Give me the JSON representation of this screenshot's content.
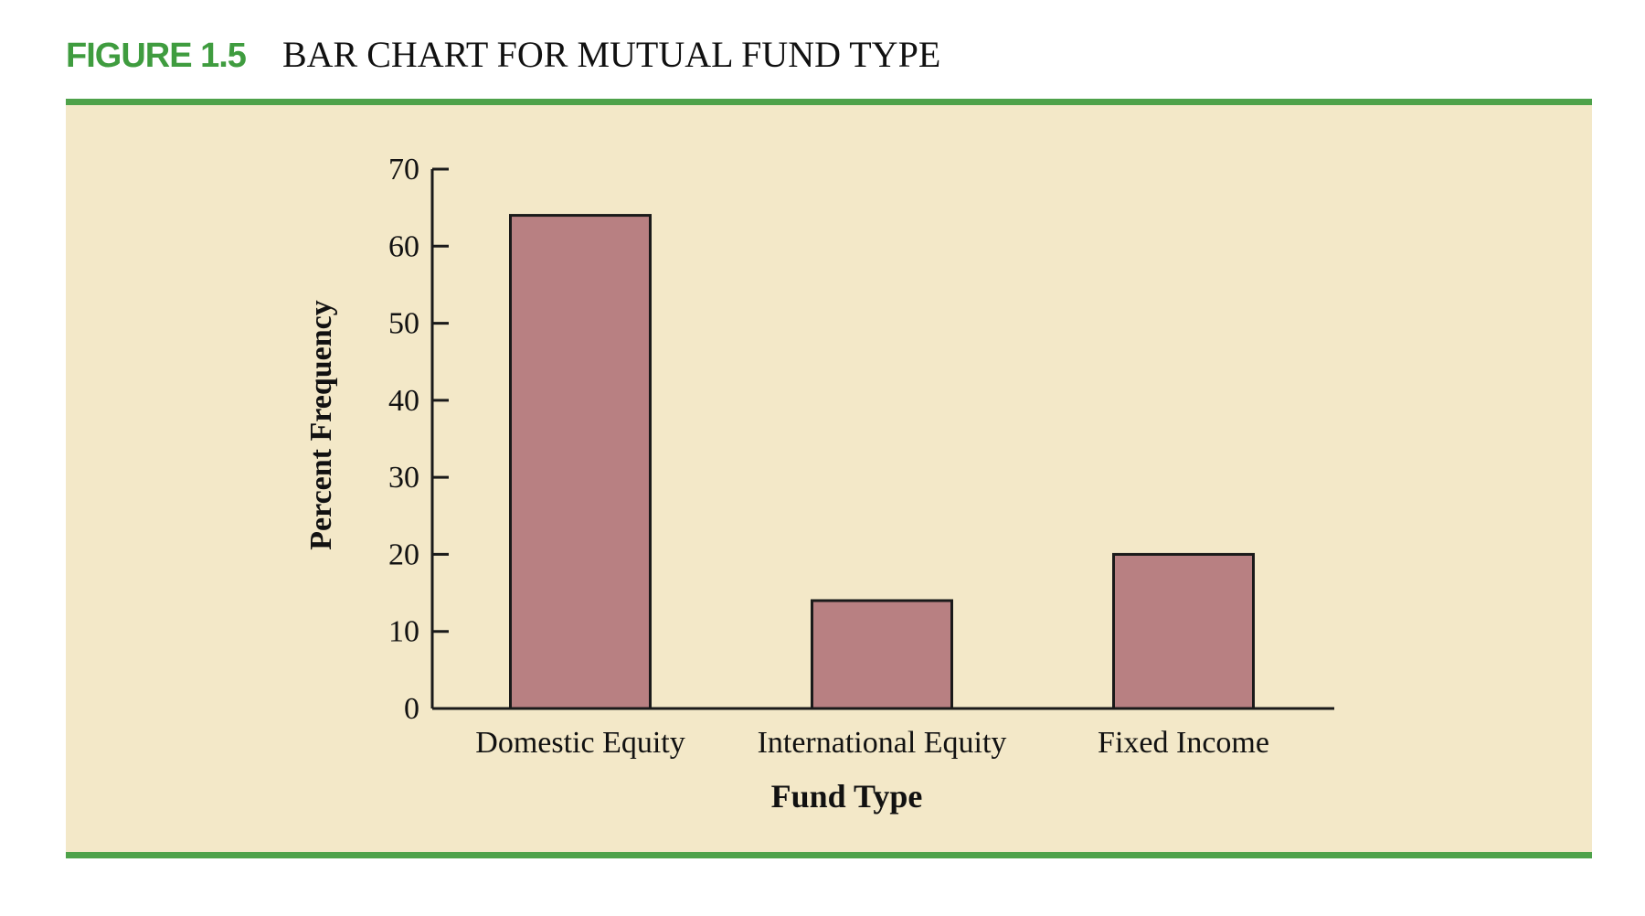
{
  "figure": {
    "label": "FIGURE 1.5",
    "title": "BAR CHART FOR MUTUAL FUND TYPE"
  },
  "colors": {
    "accent": "#4ea24a",
    "panel_background": "#f3e8c8",
    "bar_fill": "#b88082",
    "bar_stroke": "#1a1a1a"
  },
  "chart_data": {
    "type": "bar",
    "categories": [
      "Domestic Equity",
      "International Equity",
      "Fixed Income"
    ],
    "values": [
      64,
      14,
      20
    ],
    "xlabel": "Fund Type",
    "ylabel": "Percent Frequency",
    "ylim": [
      0,
      70
    ],
    "yticks": [
      0,
      10,
      20,
      30,
      40,
      50,
      60,
      70
    ],
    "grid": false,
    "legend": "none"
  }
}
